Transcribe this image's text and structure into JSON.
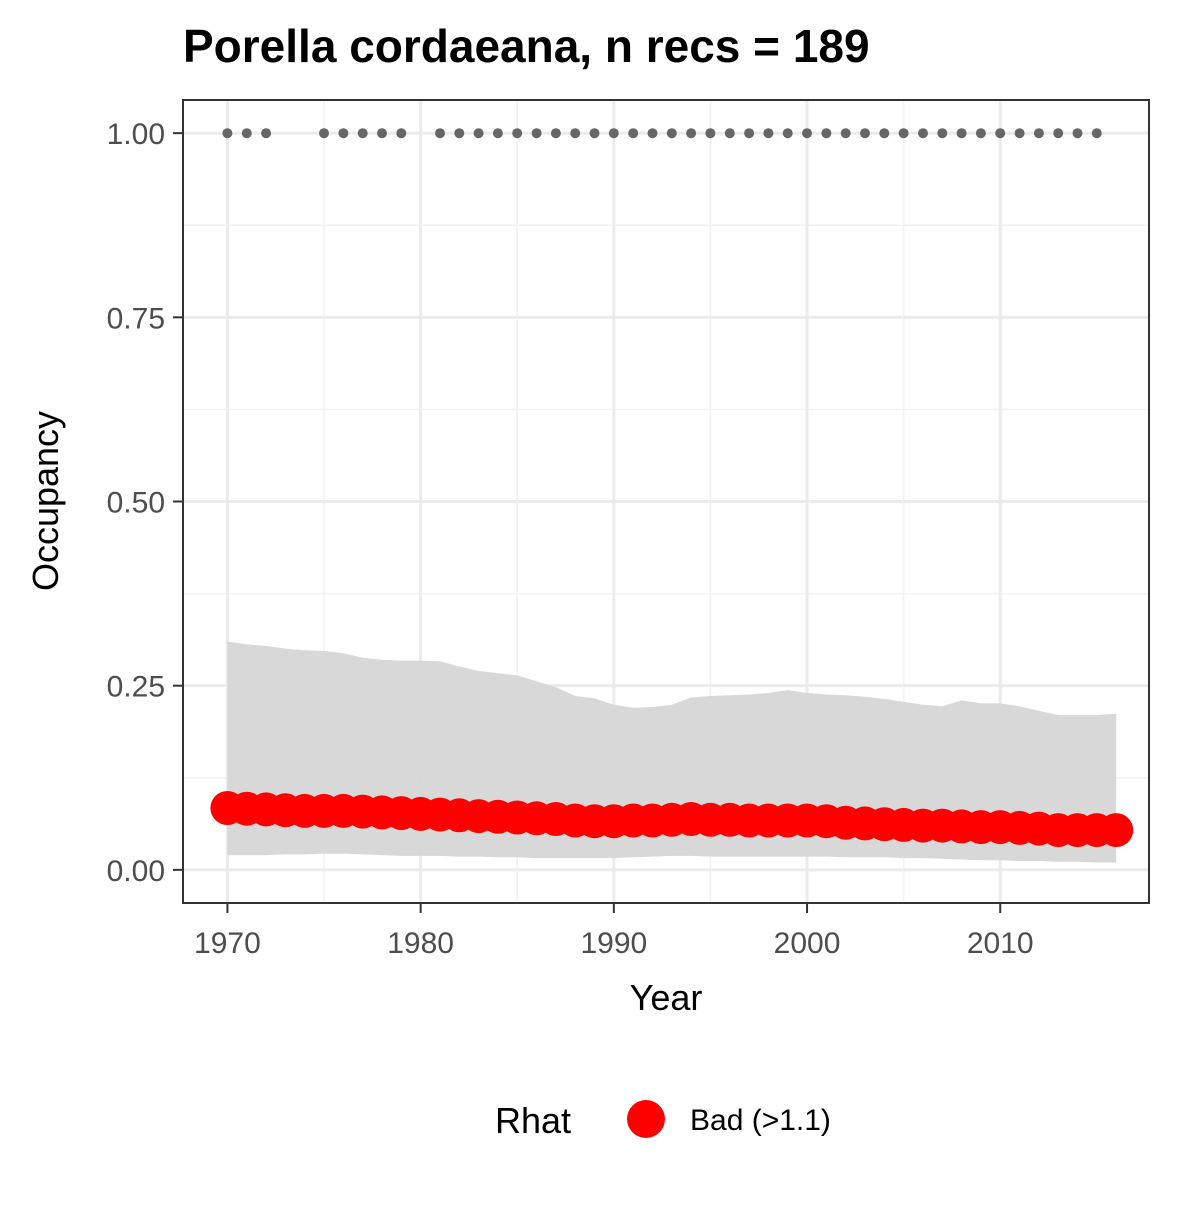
{
  "chart_data": {
    "type": "line",
    "title": "Porella cordaeana, n recs = 189",
    "xlabel": "Year",
    "ylabel": "Occupancy",
    "xlim": [
      1967.7,
      2017.7
    ],
    "ylim": [
      -0.045,
      1.045
    ],
    "x_ticks": [
      "1970",
      "1980",
      "1990",
      "2000",
      "2010"
    ],
    "x_tick_values": [
      1970,
      1980,
      1990,
      2000,
      2010
    ],
    "y_ticks": [
      "0.00",
      "0.25",
      "0.50",
      "0.75",
      "1.00"
    ],
    "y_tick_values": [
      0,
      0.25,
      0.5,
      0.75,
      1.0
    ],
    "grid": true,
    "legend": {
      "title": "Rhat",
      "placement": "bottom",
      "entries": [
        {
          "label": "Bad (>1.1)",
          "color": "#ff0000"
        }
      ]
    },
    "series": [
      {
        "name": "Bad (>1.1)",
        "color": "#ff0000",
        "x": [
          1970,
          1971,
          1972,
          1973,
          1974,
          1975,
          1976,
          1977,
          1978,
          1979,
          1980,
          1981,
          1982,
          1983,
          1984,
          1985,
          1986,
          1987,
          1988,
          1989,
          1990,
          1991,
          1992,
          1993,
          1994,
          1995,
          1996,
          1997,
          1998,
          1999,
          2000,
          2001,
          2002,
          2003,
          2004,
          2005,
          2006,
          2007,
          2008,
          2009,
          2010,
          2011,
          2012,
          2013,
          2014,
          2015,
          2016
        ],
        "y": [
          0.084,
          0.083,
          0.082,
          0.081,
          0.08,
          0.08,
          0.08,
          0.079,
          0.078,
          0.077,
          0.076,
          0.075,
          0.074,
          0.073,
          0.072,
          0.071,
          0.07,
          0.069,
          0.067,
          0.066,
          0.066,
          0.067,
          0.067,
          0.068,
          0.069,
          0.068,
          0.068,
          0.067,
          0.067,
          0.067,
          0.067,
          0.066,
          0.064,
          0.063,
          0.062,
          0.061,
          0.06,
          0.06,
          0.059,
          0.058,
          0.058,
          0.057,
          0.056,
          0.054,
          0.054,
          0.054,
          0.054
        ]
      }
    ],
    "credible_interval": {
      "color": "#d6d6d6",
      "x": [
        1970,
        1971,
        1972,
        1973,
        1974,
        1975,
        1976,
        1977,
        1978,
        1979,
        1980,
        1981,
        1982,
        1983,
        1984,
        1985,
        1986,
        1987,
        1988,
        1989,
        1990,
        1991,
        1992,
        1993,
        1994,
        1995,
        1996,
        1997,
        1998,
        1999,
        2000,
        2001,
        2002,
        2003,
        2004,
        2005,
        2006,
        2007,
        2008,
        2009,
        2010,
        2011,
        2012,
        2013,
        2014,
        2015,
        2016
      ],
      "upper": [
        0.31,
        0.306,
        0.304,
        0.3,
        0.298,
        0.297,
        0.294,
        0.288,
        0.285,
        0.284,
        0.284,
        0.283,
        0.276,
        0.27,
        0.267,
        0.264,
        0.256,
        0.248,
        0.236,
        0.233,
        0.224,
        0.22,
        0.221,
        0.224,
        0.234,
        0.236,
        0.237,
        0.238,
        0.24,
        0.244,
        0.24,
        0.238,
        0.237,
        0.235,
        0.232,
        0.228,
        0.224,
        0.222,
        0.23,
        0.226,
        0.226,
        0.222,
        0.216,
        0.21,
        0.21,
        0.21,
        0.212
      ],
      "lower": [
        0.02,
        0.02,
        0.02,
        0.021,
        0.021,
        0.022,
        0.022,
        0.021,
        0.02,
        0.019,
        0.019,
        0.019,
        0.018,
        0.018,
        0.017,
        0.017,
        0.016,
        0.016,
        0.016,
        0.016,
        0.016,
        0.017,
        0.018,
        0.019,
        0.019,
        0.018,
        0.018,
        0.018,
        0.018,
        0.018,
        0.018,
        0.018,
        0.017,
        0.017,
        0.017,
        0.016,
        0.016,
        0.015,
        0.014,
        0.013,
        0.013,
        0.012,
        0.012,
        0.011,
        0.011,
        0.01,
        0.01
      ]
    },
    "record_years": {
      "y": 1.0,
      "color": "#666666",
      "x": [
        1970,
        1971,
        1972,
        1975,
        1976,
        1977,
        1978,
        1979,
        1981,
        1982,
        1983,
        1984,
        1985,
        1986,
        1987,
        1988,
        1989,
        1990,
        1991,
        1992,
        1993,
        1994,
        1995,
        1996,
        1997,
        1998,
        1999,
        2000,
        2001,
        2002,
        2003,
        2004,
        2005,
        2006,
        2007,
        2008,
        2009,
        2010,
        2011,
        2012,
        2013,
        2014,
        2015
      ]
    }
  }
}
